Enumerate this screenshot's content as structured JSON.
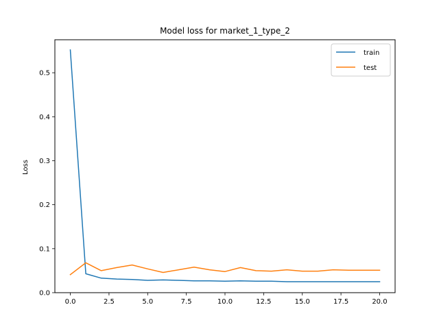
{
  "chart_data": {
    "type": "line",
    "title": "Model loss for market_1_type_2",
    "xlabel": "",
    "ylabel": "Loss",
    "xlim": [
      -1,
      21
    ],
    "ylim": [
      0,
      0.575
    ],
    "xticks": [
      0,
      2.5,
      5,
      7.5,
      10,
      12.5,
      15,
      17.5,
      20
    ],
    "xtick_labels": [
      "0.0",
      "2.5",
      "5.0",
      "7.5",
      "10.0",
      "12.5",
      "15.0",
      "17.5",
      "20.0"
    ],
    "yticks": [
      0,
      0.1,
      0.2,
      0.3,
      0.4,
      0.5
    ],
    "ytick_labels": [
      "0.0",
      "0.1",
      "0.2",
      "0.3",
      "0.4",
      "0.5"
    ],
    "grid": false,
    "legend_position": "top-right",
    "x": [
      0,
      1,
      2,
      3,
      4,
      5,
      6,
      7,
      8,
      9,
      10,
      11,
      12,
      13,
      14,
      15,
      16,
      17,
      18,
      19,
      20
    ],
    "series": [
      {
        "name": "train",
        "color": "#1f77b4",
        "values": [
          0.552,
          0.043,
          0.033,
          0.031,
          0.03,
          0.028,
          0.029,
          0.028,
          0.027,
          0.027,
          0.026,
          0.027,
          0.026,
          0.026,
          0.025,
          0.025,
          0.025,
          0.025,
          0.025,
          0.025,
          0.025
        ]
      },
      {
        "name": "test",
        "color": "#ff7f0e",
        "values": [
          0.041,
          0.068,
          0.05,
          0.057,
          0.063,
          0.054,
          0.046,
          0.052,
          0.058,
          0.052,
          0.048,
          0.057,
          0.05,
          0.049,
          0.052,
          0.049,
          0.049,
          0.052,
          0.051,
          0.051,
          0.051
        ]
      }
    ]
  }
}
